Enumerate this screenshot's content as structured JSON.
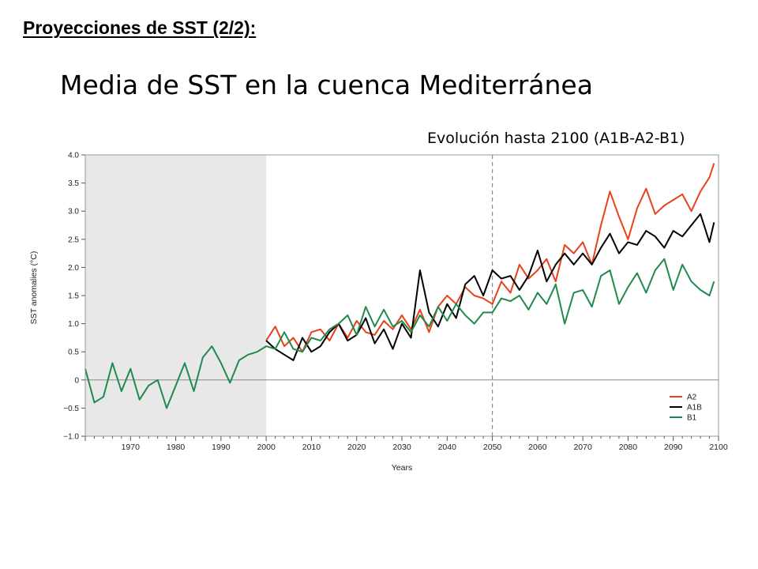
{
  "slide": {
    "heading": "Proyecciones de SST (2/2):",
    "title": "Media de SST en la cuenca Mediterránea",
    "subtitle": "Evolución hasta 2100 (A1B-A2-B1)"
  },
  "colors": {
    "A2": "#e8411c",
    "A1B": "#000000",
    "B1": "#1f8a4c",
    "shade": "#e8e8e8"
  },
  "chart_data": {
    "type": "line",
    "xlabel": "Years",
    "ylabel": "SST anomalies (°C)",
    "xlim": [
      1960,
      2100
    ],
    "ylim": [
      -1.0,
      4.0
    ],
    "xticks": [
      1970,
      1980,
      1990,
      2000,
      2010,
      2020,
      2030,
      2040,
      2050,
      2060,
      2070,
      2080,
      2090,
      2100
    ],
    "yticks": [
      4.0,
      3.5,
      3.0,
      2.5,
      2.0,
      1.5,
      1.0,
      0.5,
      0,
      -0.5,
      -1.0
    ],
    "ytick_labels": [
      "4.0",
      "3.5",
      "3.0",
      "2.5",
      "2.0",
      "1.5",
      "1.0",
      "0.5",
      "0",
      "−0.5",
      "−1.0"
    ],
    "shaded_region": [
      1960,
      2000
    ],
    "reference_line_x": 2050,
    "zero_line": true,
    "legend_position": "bottom-right",
    "series": [
      {
        "name": "A2",
        "x": [
          2000,
          2002,
          2004,
          2006,
          2008,
          2010,
          2012,
          2014,
          2016,
          2018,
          2020,
          2022,
          2024,
          2026,
          2028,
          2030,
          2032,
          2034,
          2036,
          2038,
          2040,
          2042,
          2044,
          2046,
          2048,
          2050,
          2052,
          2054,
          2056,
          2058,
          2060,
          2062,
          2064,
          2066,
          2068,
          2070,
          2072,
          2074,
          2076,
          2078,
          2080,
          2082,
          2084,
          2086,
          2088,
          2090,
          2092,
          2094,
          2096,
          2098,
          2099
        ],
        "y": [
          0.7,
          0.95,
          0.6,
          0.75,
          0.5,
          0.85,
          0.9,
          0.7,
          1.0,
          0.75,
          1.05,
          0.85,
          0.8,
          1.05,
          0.9,
          1.15,
          0.9,
          1.25,
          0.85,
          1.3,
          1.5,
          1.35,
          1.65,
          1.5,
          1.45,
          1.35,
          1.75,
          1.55,
          2.05,
          1.8,
          1.95,
          2.15,
          1.75,
          2.4,
          2.25,
          2.45,
          2.05,
          2.75,
          3.35,
          2.9,
          2.5,
          3.05,
          3.4,
          2.95,
          3.1,
          3.2,
          3.3,
          3.0,
          3.35,
          3.6,
          3.85
        ]
      },
      {
        "name": "A1B",
        "x": [
          2000,
          2002,
          2004,
          2006,
          2008,
          2010,
          2012,
          2014,
          2016,
          2018,
          2020,
          2022,
          2024,
          2026,
          2028,
          2030,
          2032,
          2034,
          2036,
          2038,
          2040,
          2042,
          2044,
          2046,
          2048,
          2050,
          2052,
          2054,
          2056,
          2058,
          2060,
          2062,
          2064,
          2066,
          2068,
          2070,
          2072,
          2074,
          2076,
          2078,
          2080,
          2082,
          2084,
          2086,
          2088,
          2090,
          2092,
          2094,
          2096,
          2098,
          2099
        ],
        "y": [
          0.7,
          0.55,
          0.45,
          0.35,
          0.75,
          0.5,
          0.6,
          0.85,
          1.0,
          0.7,
          0.8,
          1.1,
          0.65,
          0.9,
          0.55,
          1.0,
          0.75,
          1.95,
          1.2,
          0.95,
          1.35,
          1.1,
          1.7,
          1.85,
          1.5,
          1.95,
          1.8,
          1.85,
          1.6,
          1.85,
          2.3,
          1.75,
          2.05,
          2.25,
          2.05,
          2.25,
          2.05,
          2.35,
          2.6,
          2.25,
          2.45,
          2.4,
          2.65,
          2.55,
          2.35,
          2.65,
          2.55,
          2.75,
          2.95,
          2.45,
          2.8
        ]
      },
      {
        "name": "B1",
        "x": [
          1960,
          1962,
          1964,
          1966,
          1968,
          1970,
          1972,
          1974,
          1976,
          1978,
          1980,
          1982,
          1984,
          1986,
          1988,
          1990,
          1992,
          1994,
          1996,
          1998,
          2000,
          2002,
          2004,
          2006,
          2008,
          2010,
          2012,
          2014,
          2016,
          2018,
          2020,
          2022,
          2024,
          2026,
          2028,
          2030,
          2032,
          2034,
          2036,
          2038,
          2040,
          2042,
          2044,
          2046,
          2048,
          2050,
          2052,
          2054,
          2056,
          2058,
          2060,
          2062,
          2064,
          2066,
          2068,
          2070,
          2072,
          2074,
          2076,
          2078,
          2080,
          2082,
          2084,
          2086,
          2088,
          2090,
          2092,
          2094,
          2096,
          2098,
          2099
        ],
        "y": [
          0.2,
          -0.4,
          -0.3,
          0.3,
          -0.2,
          0.2,
          -0.35,
          -0.1,
          0.0,
          -0.5,
          -0.1,
          0.3,
          -0.2,
          0.4,
          0.6,
          0.3,
          -0.05,
          0.35,
          0.45,
          0.5,
          0.6,
          0.55,
          0.85,
          0.55,
          0.5,
          0.75,
          0.7,
          0.9,
          1.0,
          1.15,
          0.8,
          1.3,
          0.95,
          1.25,
          0.95,
          1.05,
          0.85,
          1.15,
          0.95,
          1.3,
          1.05,
          1.35,
          1.15,
          1.0,
          1.2,
          1.2,
          1.45,
          1.4,
          1.5,
          1.25,
          1.55,
          1.35,
          1.7,
          1.0,
          1.55,
          1.6,
          1.3,
          1.85,
          1.95,
          1.35,
          1.65,
          1.9,
          1.55,
          1.95,
          2.15,
          1.6,
          2.05,
          1.75,
          1.6,
          1.5,
          1.75
        ]
      }
    ]
  }
}
